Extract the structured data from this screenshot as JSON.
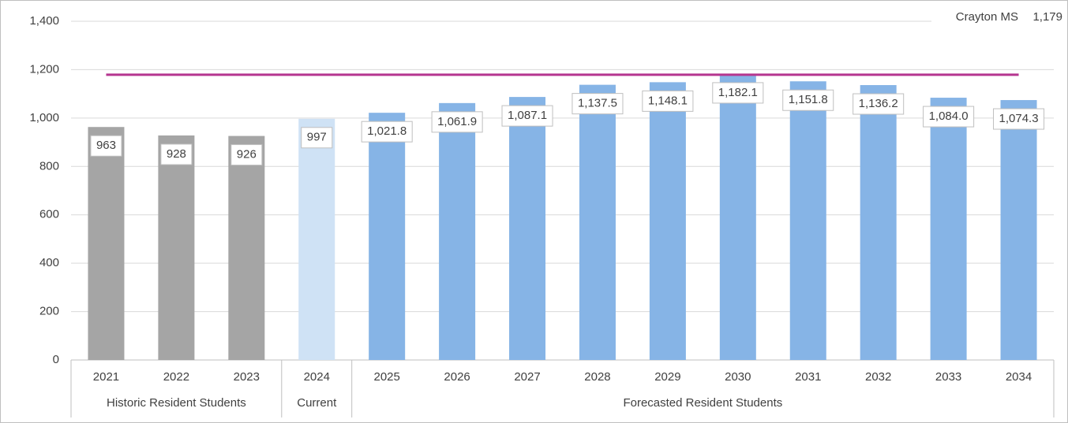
{
  "chart_data": {
    "type": "bar",
    "categories": [
      "2021",
      "2022",
      "2023",
      "2024",
      "2025",
      "2026",
      "2027",
      "2028",
      "2029",
      "2030",
      "2031",
      "2032",
      "2033",
      "2034"
    ],
    "values": [
      963,
      928,
      926,
      997,
      1021.8,
      1061.9,
      1087.1,
      1137.5,
      1148.1,
      1182.1,
      1151.8,
      1136.2,
      1084.0,
      1074.3
    ],
    "value_labels": [
      "963",
      "928",
      "926",
      "997",
      "1,021.8",
      "1,061.9",
      "1,087.1",
      "1,137.5",
      "1,148.1",
      "1,182.1",
      "1,151.8",
      "1,136.2",
      "1,084.0",
      "1,074.3"
    ],
    "groups": [
      {
        "label": "Historic Resident Students",
        "count": 3,
        "color": "#a5a5a5"
      },
      {
        "label": "Current",
        "count": 1,
        "color": "#cfe2f5"
      },
      {
        "label": "Forecasted Resident Students",
        "count": 10,
        "color": "#86b4e6"
      }
    ],
    "reference_line": {
      "label": "Crayton MS",
      "value": 1179,
      "value_label": "1,179",
      "color": "#b5358f"
    },
    "ylim": [
      0,
      1400
    ],
    "yticks": [
      0,
      200,
      400,
      600,
      800,
      {
        "value": 1000,
        "label": "1,000"
      },
      {
        "value": 1200,
        "label": "1,200"
      },
      {
        "value": 1400,
        "label": "1,400"
      }
    ],
    "grid": true
  }
}
